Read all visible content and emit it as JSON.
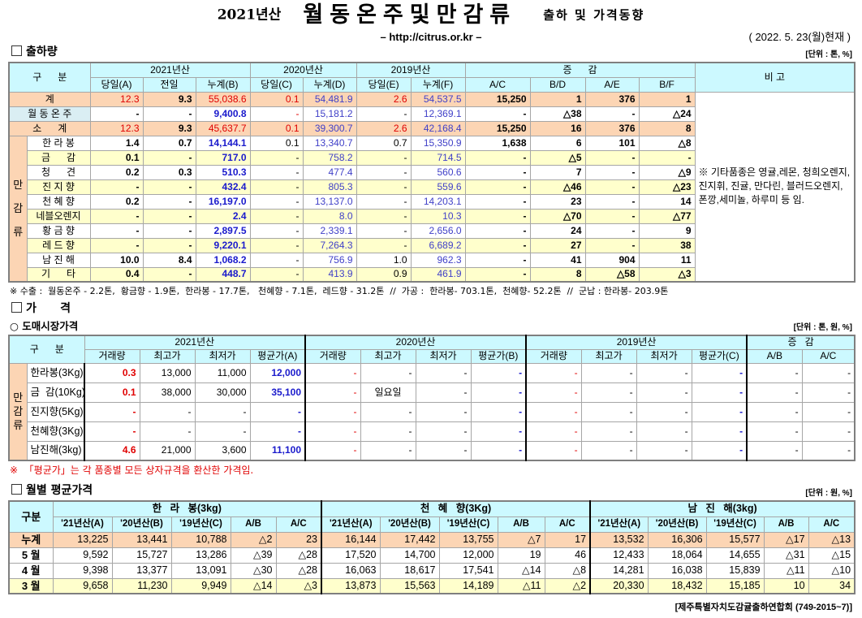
{
  "header": {
    "year": "2021년산",
    "title": "월동온주및만감류",
    "subtitle": "출하 및 가격동향",
    "url": "– http://citrus.or.kr –",
    "date": "( 2022. 5. 23(월)현재 )"
  },
  "shipment": {
    "section_title": "출하량",
    "unit": "[단위 : 톤, %]",
    "gubun": "구      분",
    "groups": [
      "2021년산",
      "2020년산",
      "2019년산",
      "증      감"
    ],
    "subcols": [
      "당일(A)",
      "전일",
      "누계(B)",
      "당일(C)",
      "누계(D)",
      "당일(E)",
      "누계(F)",
      "A/C",
      "B/D",
      "A/E",
      "B/F"
    ],
    "bigo_label": "비 고",
    "bigo_text": "※ 기타품종은 영귤,레몬, 청희오렌지, 진지휘, 진귤, 만다린, 블러드오렌지, 폰깡,세미놀, 하루미 등 임.",
    "group_label": "만감류",
    "rows": [
      {
        "name": "계",
        "style": "peach",
        "values": [
          "12.3",
          "9.3",
          "55,038.6",
          "0.1",
          "54,481.9",
          "2.6",
          "54,537.5",
          "15,250",
          "1",
          "376",
          "1"
        ]
      },
      {
        "name": "월 동 온 주",
        "style": "white",
        "values": [
          "-",
          "-",
          "9,400.8",
          "-",
          "15,181.2",
          "-",
          "12,369.1",
          "-",
          "△38",
          "-",
          "△24"
        ]
      },
      {
        "name": "소      계",
        "style": "peach",
        "values": [
          "12.3",
          "9.3",
          "45,637.7",
          "0.1",
          "39,300.7",
          "2.6",
          "42,168.4",
          "15,250",
          "16",
          "376",
          "8"
        ]
      },
      {
        "name": "한 라 봉",
        "style": "white",
        "values": [
          "1.4",
          "0.7",
          "14,144.1",
          "0.1",
          "13,340.7",
          "0.7",
          "15,350.9",
          "1,638",
          "6",
          "101",
          "△8"
        ]
      },
      {
        "name": "금      감",
        "style": "yellow",
        "values": [
          "0.1",
          "-",
          "717.0",
          "-",
          "758.2",
          "-",
          "714.5",
          "-",
          "△5",
          "-",
          "-"
        ]
      },
      {
        "name": "청      견",
        "style": "white",
        "values": [
          "0.2",
          "0.3",
          "510.3",
          "-",
          "477.4",
          "-",
          "560.6",
          "-",
          "7",
          "-",
          "△9"
        ]
      },
      {
        "name": "진 지 향",
        "style": "yellow",
        "values": [
          "-",
          "-",
          "432.4",
          "-",
          "805.3",
          "-",
          "559.6",
          "-",
          "△46",
          "-",
          "△23"
        ]
      },
      {
        "name": "천 혜 향",
        "style": "white",
        "values": [
          "0.2",
          "-",
          "16,197.0",
          "-",
          "13,137.0",
          "-",
          "14,203.1",
          "-",
          "23",
          "-",
          "14"
        ]
      },
      {
        "name": "네블오렌지",
        "style": "yellow",
        "values": [
          "-",
          "-",
          "2.4",
          "-",
          "8.0",
          "-",
          "10.3",
          "-",
          "△70",
          "-",
          "△77"
        ]
      },
      {
        "name": "황 금 향",
        "style": "white",
        "values": [
          "-",
          "-",
          "2,897.5",
          "-",
          "2,339.1",
          "-",
          "2,656.0",
          "-",
          "24",
          "-",
          "9"
        ]
      },
      {
        "name": "레 드 향",
        "style": "yellow",
        "values": [
          "-",
          "-",
          "9,220.1",
          "-",
          "7,264.3",
          "-",
          "6,689.2",
          "-",
          "27",
          "-",
          "38"
        ]
      },
      {
        "name": "남 진 해",
        "style": "white",
        "values": [
          "10.0",
          "8.4",
          "1,068.2",
          "-",
          "756.9",
          "1.0",
          "962.3",
          "-",
          "41",
          "904",
          "11"
        ]
      },
      {
        "name": "기      타",
        "style": "yellow",
        "values": [
          "0.4",
          "-",
          "448.7",
          "-",
          "413.9",
          "0.9",
          "461.9",
          "-",
          "8",
          "△58",
          "△3"
        ]
      }
    ],
    "footnote": "※ 수출 :  월동온주 - 2.2톤,  황금향 - 1.9톤,  한라봉 - 17.7톤,   천혜향 - 7.1톤,  레드향 - 31.2톤  //  가공 :  한라봉- 703.1톤,  천혜향- 52.2톤  //  군납 : 한라봉- 203.9톤"
  },
  "price": {
    "section_title": "가      격",
    "sub_title": "○ 도매시장가격",
    "unit": "[단위 : 톤, 원, %]",
    "gubun": "구      분",
    "group_label": "만감류",
    "groups": [
      "2021년산",
      "2020년산",
      "2019년산",
      "증   감"
    ],
    "subcols": [
      "거래량",
      "최고가",
      "최저가",
      "평균가(A)",
      "거래량",
      "최고가",
      "최저가",
      "평균가(B)",
      "거래량",
      "최고가",
      "최저가",
      "평균가(C)",
      "A/B",
      "A/C"
    ],
    "rows": [
      {
        "name": "한라봉(3Kg)",
        "values": [
          "0.3",
          "13,000",
          "11,000",
          "12,000",
          "-",
          "-",
          "-",
          "-",
          "-",
          "-",
          "-",
          "-",
          "-",
          "-"
        ]
      },
      {
        "name": "금  감(10Kg)",
        "values": [
          "0.1",
          "38,000",
          "30,000",
          "35,100",
          "-",
          "일요일",
          "-",
          "-",
          "-",
          "-",
          "-",
          "-",
          "-",
          "-"
        ]
      },
      {
        "name": "진지향(5Kg)",
        "values": [
          "-",
          "-",
          "-",
          "-",
          "-",
          "-",
          "-",
          "-",
          "-",
          "-",
          "-",
          "-",
          "-",
          "-"
        ]
      },
      {
        "name": "천혜향(3Kg)",
        "values": [
          "-",
          "-",
          "-",
          "-",
          "-",
          "-",
          "-",
          "-",
          "-",
          "-",
          "-",
          "-",
          "-",
          "-"
        ]
      },
      {
        "name": "남진해(3kg)",
        "values": [
          "4.6",
          "21,000",
          "3,600",
          "11,100",
          "-",
          "-",
          "-",
          "-",
          "-",
          "-",
          "-",
          "-",
          "-",
          "-"
        ]
      }
    ],
    "note": "※  「평균가」는 각 품종별 모든 상자규격을 환산한 가격임."
  },
  "monthly": {
    "section_title": "월별 평균가격",
    "unit": "[단위 : 원, %]",
    "gubun": "구분",
    "groups": [
      "한   라   봉(3kg)",
      "천   혜   향(3Kg)",
      "남   진   해(3kg)"
    ],
    "subcols": [
      "'21년산(A)",
      "'20년산(B)",
      "'19년산(C)",
      "A/B",
      "A/C",
      "'21년산(A)",
      "'20년산(B)",
      "'19년산(C)",
      "A/B",
      "A/C",
      "'21년산(A)",
      "'20년산(B)",
      "'19년산(C)",
      "A/B",
      "A/C"
    ],
    "rows": [
      {
        "name": "누계",
        "style": "peach",
        "values": [
          "13,225",
          "13,441",
          "10,788",
          "△2",
          "23",
          "16,144",
          "17,442",
          "13,755",
          "△7",
          "17",
          "13,532",
          "16,306",
          "15,577",
          "△17",
          "△13"
        ]
      },
      {
        "name": "5 월",
        "style": "white",
        "values": [
          "9,592",
          "15,727",
          "13,286",
          "△39",
          "△28",
          "17,520",
          "14,700",
          "12,000",
          "19",
          "46",
          "12,433",
          "18,064",
          "14,655",
          "△31",
          "△15"
        ]
      },
      {
        "name": "4 월",
        "style": "white",
        "values": [
          "9,398",
          "13,377",
          "13,091",
          "△30",
          "△28",
          "16,063",
          "18,617",
          "17,541",
          "△14",
          "△8",
          "14,281",
          "16,038",
          "15,839",
          "△11",
          "△10"
        ]
      },
      {
        "name": "3 월",
        "style": "yellow",
        "values": [
          "9,658",
          "11,230",
          "9,949",
          "△14",
          "△3",
          "13,873",
          "15,563",
          "14,189",
          "△11",
          "△2",
          "20,330",
          "18,432",
          "15,185",
          "10",
          "34"
        ]
      }
    ],
    "source": "[제주특별자치도감귤출하연합회 (749-2015~7)]"
  },
  "colors": {
    "header": "#ccf9ff",
    "total_row": "#fcd5b4",
    "alt_row": "#ffffcc",
    "accent_red": "#e00000",
    "accent_blue": "#1a1acc"
  }
}
